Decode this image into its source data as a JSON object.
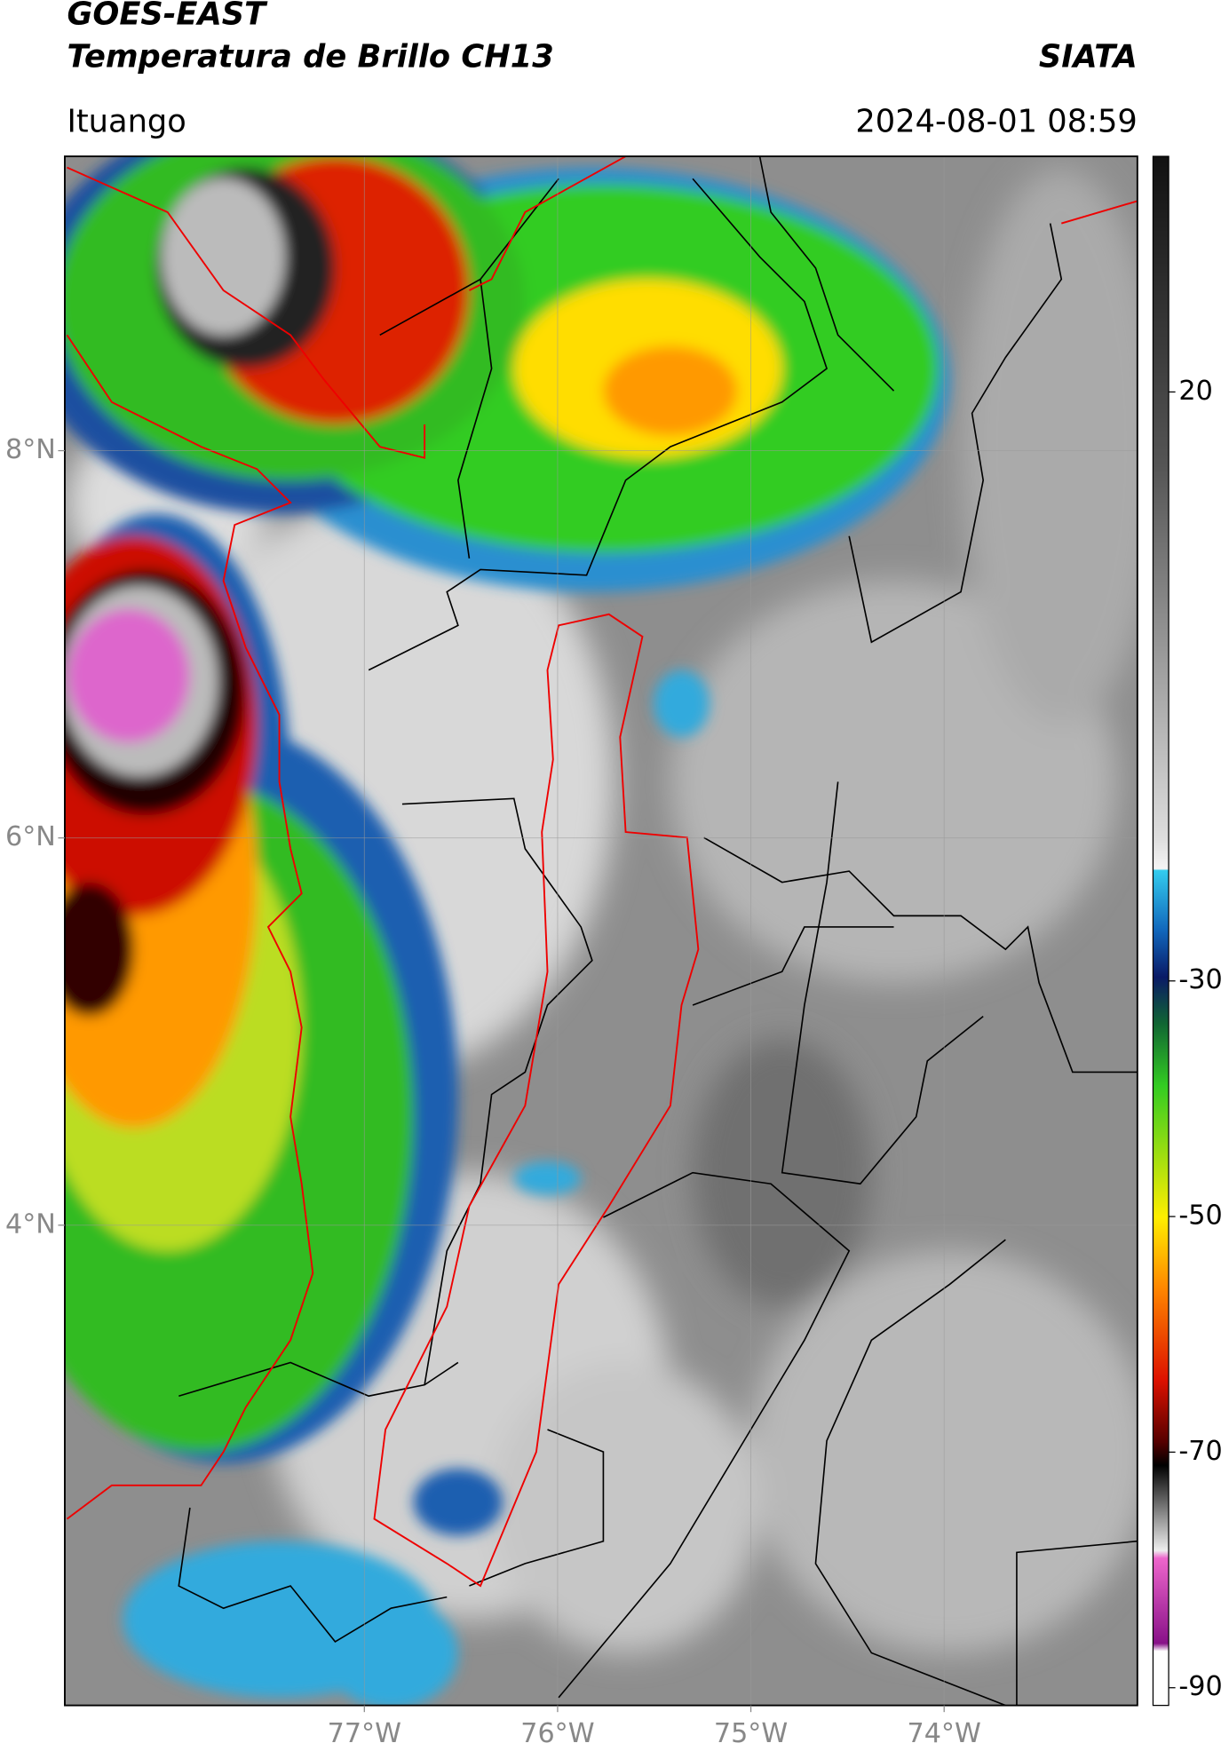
{
  "header": {
    "title": "GOES-EAST",
    "subtitle": "Temperatura de Brillo CH13",
    "source": "SIATA",
    "location": "Ituango",
    "datetime": "2024-08-01 08:59"
  },
  "map": {
    "xlim": [
      -78.55,
      -73.0
    ],
    "ylim": [
      1.52,
      9.52
    ],
    "xticks": [
      {
        "value": -77,
        "label": "77°W"
      },
      {
        "value": -76,
        "label": "76°W"
      },
      {
        "value": -75,
        "label": "75°W"
      },
      {
        "value": -74,
        "label": "74°W"
      }
    ],
    "yticks": [
      {
        "value": 4,
        "label": "4°N"
      },
      {
        "value": 6,
        "label": "6°N"
      },
      {
        "value": 8,
        "label": "8°N"
      }
    ],
    "grid": true
  },
  "colorbar": {
    "lim": [
      -91.5,
      40
    ],
    "ticks": [
      20,
      -30,
      -50,
      -70,
      -90
    ]
  }
}
